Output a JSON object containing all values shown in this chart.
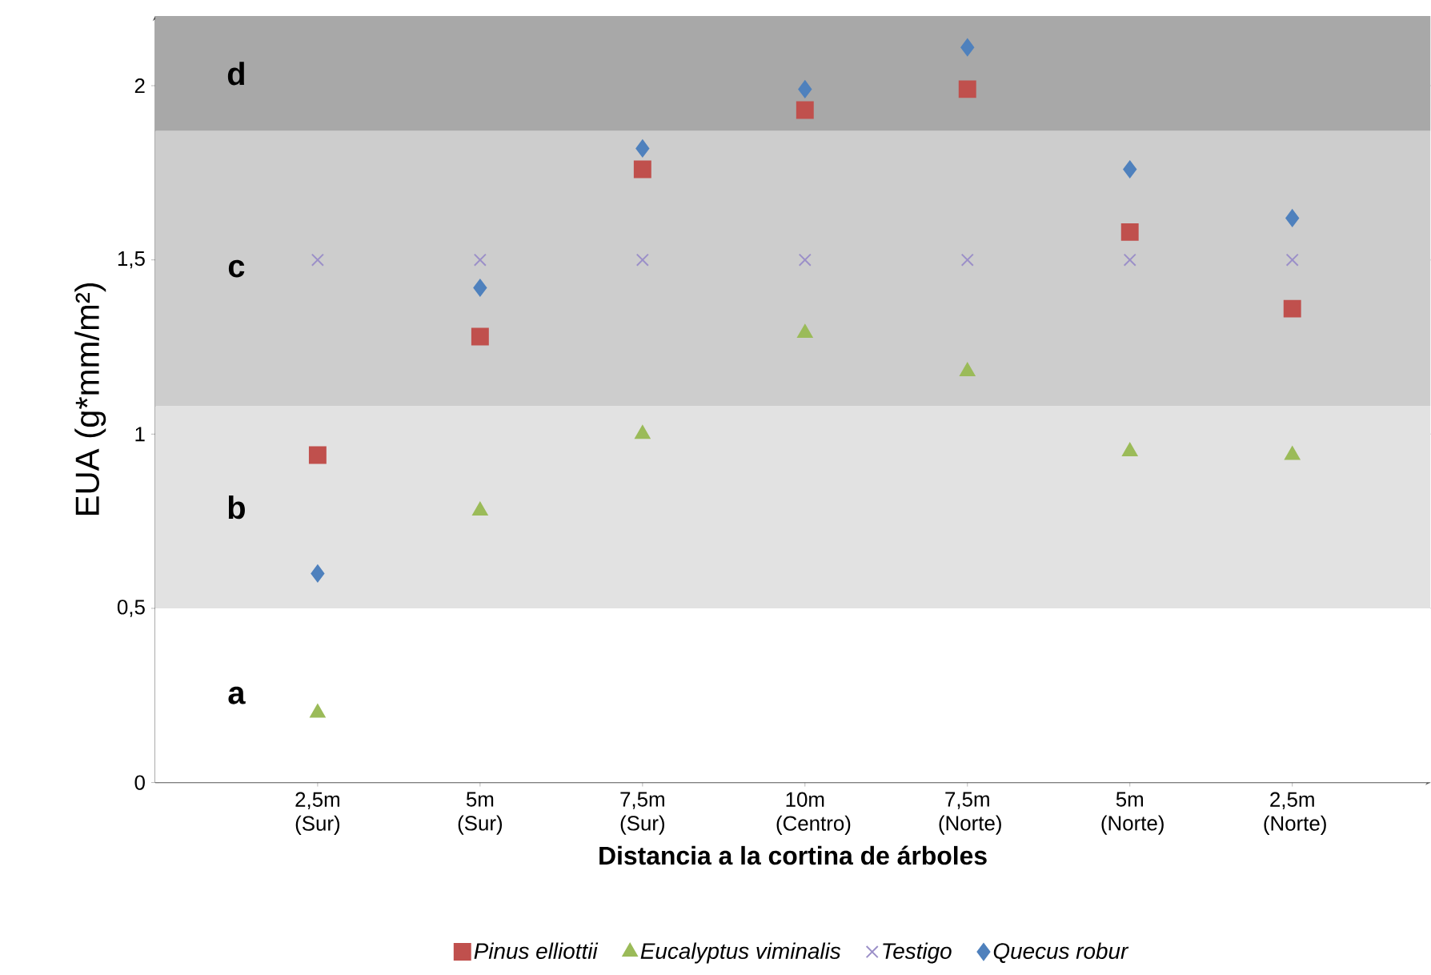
{
  "chart_data": {
    "type": "scatter",
    "xlabel": "Distancia a la cortina de árboles",
    "ylabel": "EUA (g*mm/m²)",
    "categories": [
      "2,5m (Sur)",
      "5m (Sur)",
      "7,5m (Sur)",
      "10m (Centro)",
      "7,5m (Norte)",
      "5m (Norte)",
      "2,5m (Norte)"
    ],
    "ylim": [
      0,
      2.2
    ],
    "yticks": [
      0,
      {
        "value": 0.5,
        "label": "0,5"
      },
      1,
      {
        "value": 1.5,
        "label": "1,5"
      },
      2
    ],
    "grid": "y",
    "legend": "bottom",
    "bands": [
      {
        "axis": "y",
        "from": 0,
        "to": 0.5,
        "label": "a",
        "color": "#ffffff"
      },
      {
        "axis": "y",
        "from": 0.5,
        "to": 1.08,
        "label": "b",
        "color": "#e2e2e2"
      },
      {
        "axis": "y",
        "from": 1.08,
        "to": 1.87,
        "label": "c",
        "color": "#cdcdcd"
      },
      {
        "axis": "y",
        "from": 1.87,
        "to": 2.2,
        "label": "d",
        "color": "#a8a8a8"
      }
    ],
    "series": [
      {
        "name": "Pinus elliottii",
        "color": "#c0504d",
        "marker": "square",
        "values": [
          0.94,
          1.28,
          1.76,
          1.93,
          1.99,
          1.58,
          1.36
        ]
      },
      {
        "name": "Eucalyptus viminalis",
        "color": "#9bbb59",
        "marker": "triangle",
        "values": [
          0.2,
          0.78,
          1.0,
          1.29,
          1.18,
          0.95,
          0.94
        ]
      },
      {
        "name": "Testigo",
        "color": "#9b8fc8",
        "marker": "cross",
        "values": [
          1.5,
          1.5,
          1.5,
          1.5,
          1.5,
          1.5,
          1.5
        ]
      },
      {
        "name": "Quecus robur",
        "color": "#4f81bd",
        "marker": "diamond",
        "values": [
          0.6,
          1.42,
          1.82,
          1.99,
          2.11,
          1.76,
          1.62
        ]
      }
    ]
  }
}
